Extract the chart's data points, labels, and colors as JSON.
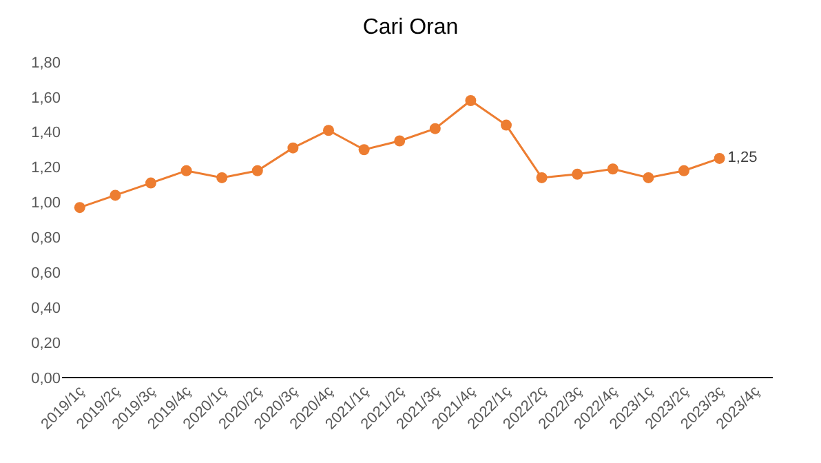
{
  "chart_data": {
    "type": "line",
    "title": "Cari Oran",
    "categories": [
      "2019/1ç",
      "2019/2ç",
      "2019/3ç",
      "2019/4ç",
      "2020/1ç",
      "2020/2ç",
      "2020/3ç",
      "2020/4ç",
      "2021/1ç",
      "2021/2ç",
      "2021/3ç",
      "2021/4ç",
      "2022/1ç",
      "2022/2ç",
      "2022/3ç",
      "2022/4ç",
      "2023/1ç",
      "2023/2ç",
      "2023/3ç",
      "2023/4ç"
    ],
    "series": [
      {
        "color": "#ed7d31",
        "values": [
          0.97,
          1.04,
          1.11,
          1.18,
          1.14,
          1.18,
          1.31,
          1.41,
          1.3,
          1.35,
          1.42,
          1.58,
          1.44,
          1.14,
          1.16,
          1.19,
          1.14,
          1.18,
          1.25,
          null
        ],
        "value_labels": [
          null,
          null,
          null,
          null,
          null,
          null,
          null,
          null,
          null,
          null,
          null,
          null,
          null,
          null,
          null,
          null,
          null,
          null,
          "1,25",
          null
        ]
      }
    ],
    "ylim": [
      0,
      1.8
    ],
    "yticks": [
      {
        "value": 0,
        "label": "0,00"
      },
      {
        "value": 0.2,
        "label": "0,20"
      },
      {
        "value": 0.4,
        "label": "0,40"
      },
      {
        "value": 0.6,
        "label": "0,60"
      },
      {
        "value": 0.8,
        "label": "0,80"
      },
      {
        "value": 1.0,
        "label": "1,00"
      },
      {
        "value": 1.2,
        "label": "1,20"
      },
      {
        "value": 1.4,
        "label": "1,40"
      },
      {
        "value": 1.6,
        "label": "1,60"
      },
      {
        "value": 1.8,
        "label": "1,80"
      }
    ],
    "legend": false,
    "marker": "circle",
    "line_style": "solid"
  }
}
